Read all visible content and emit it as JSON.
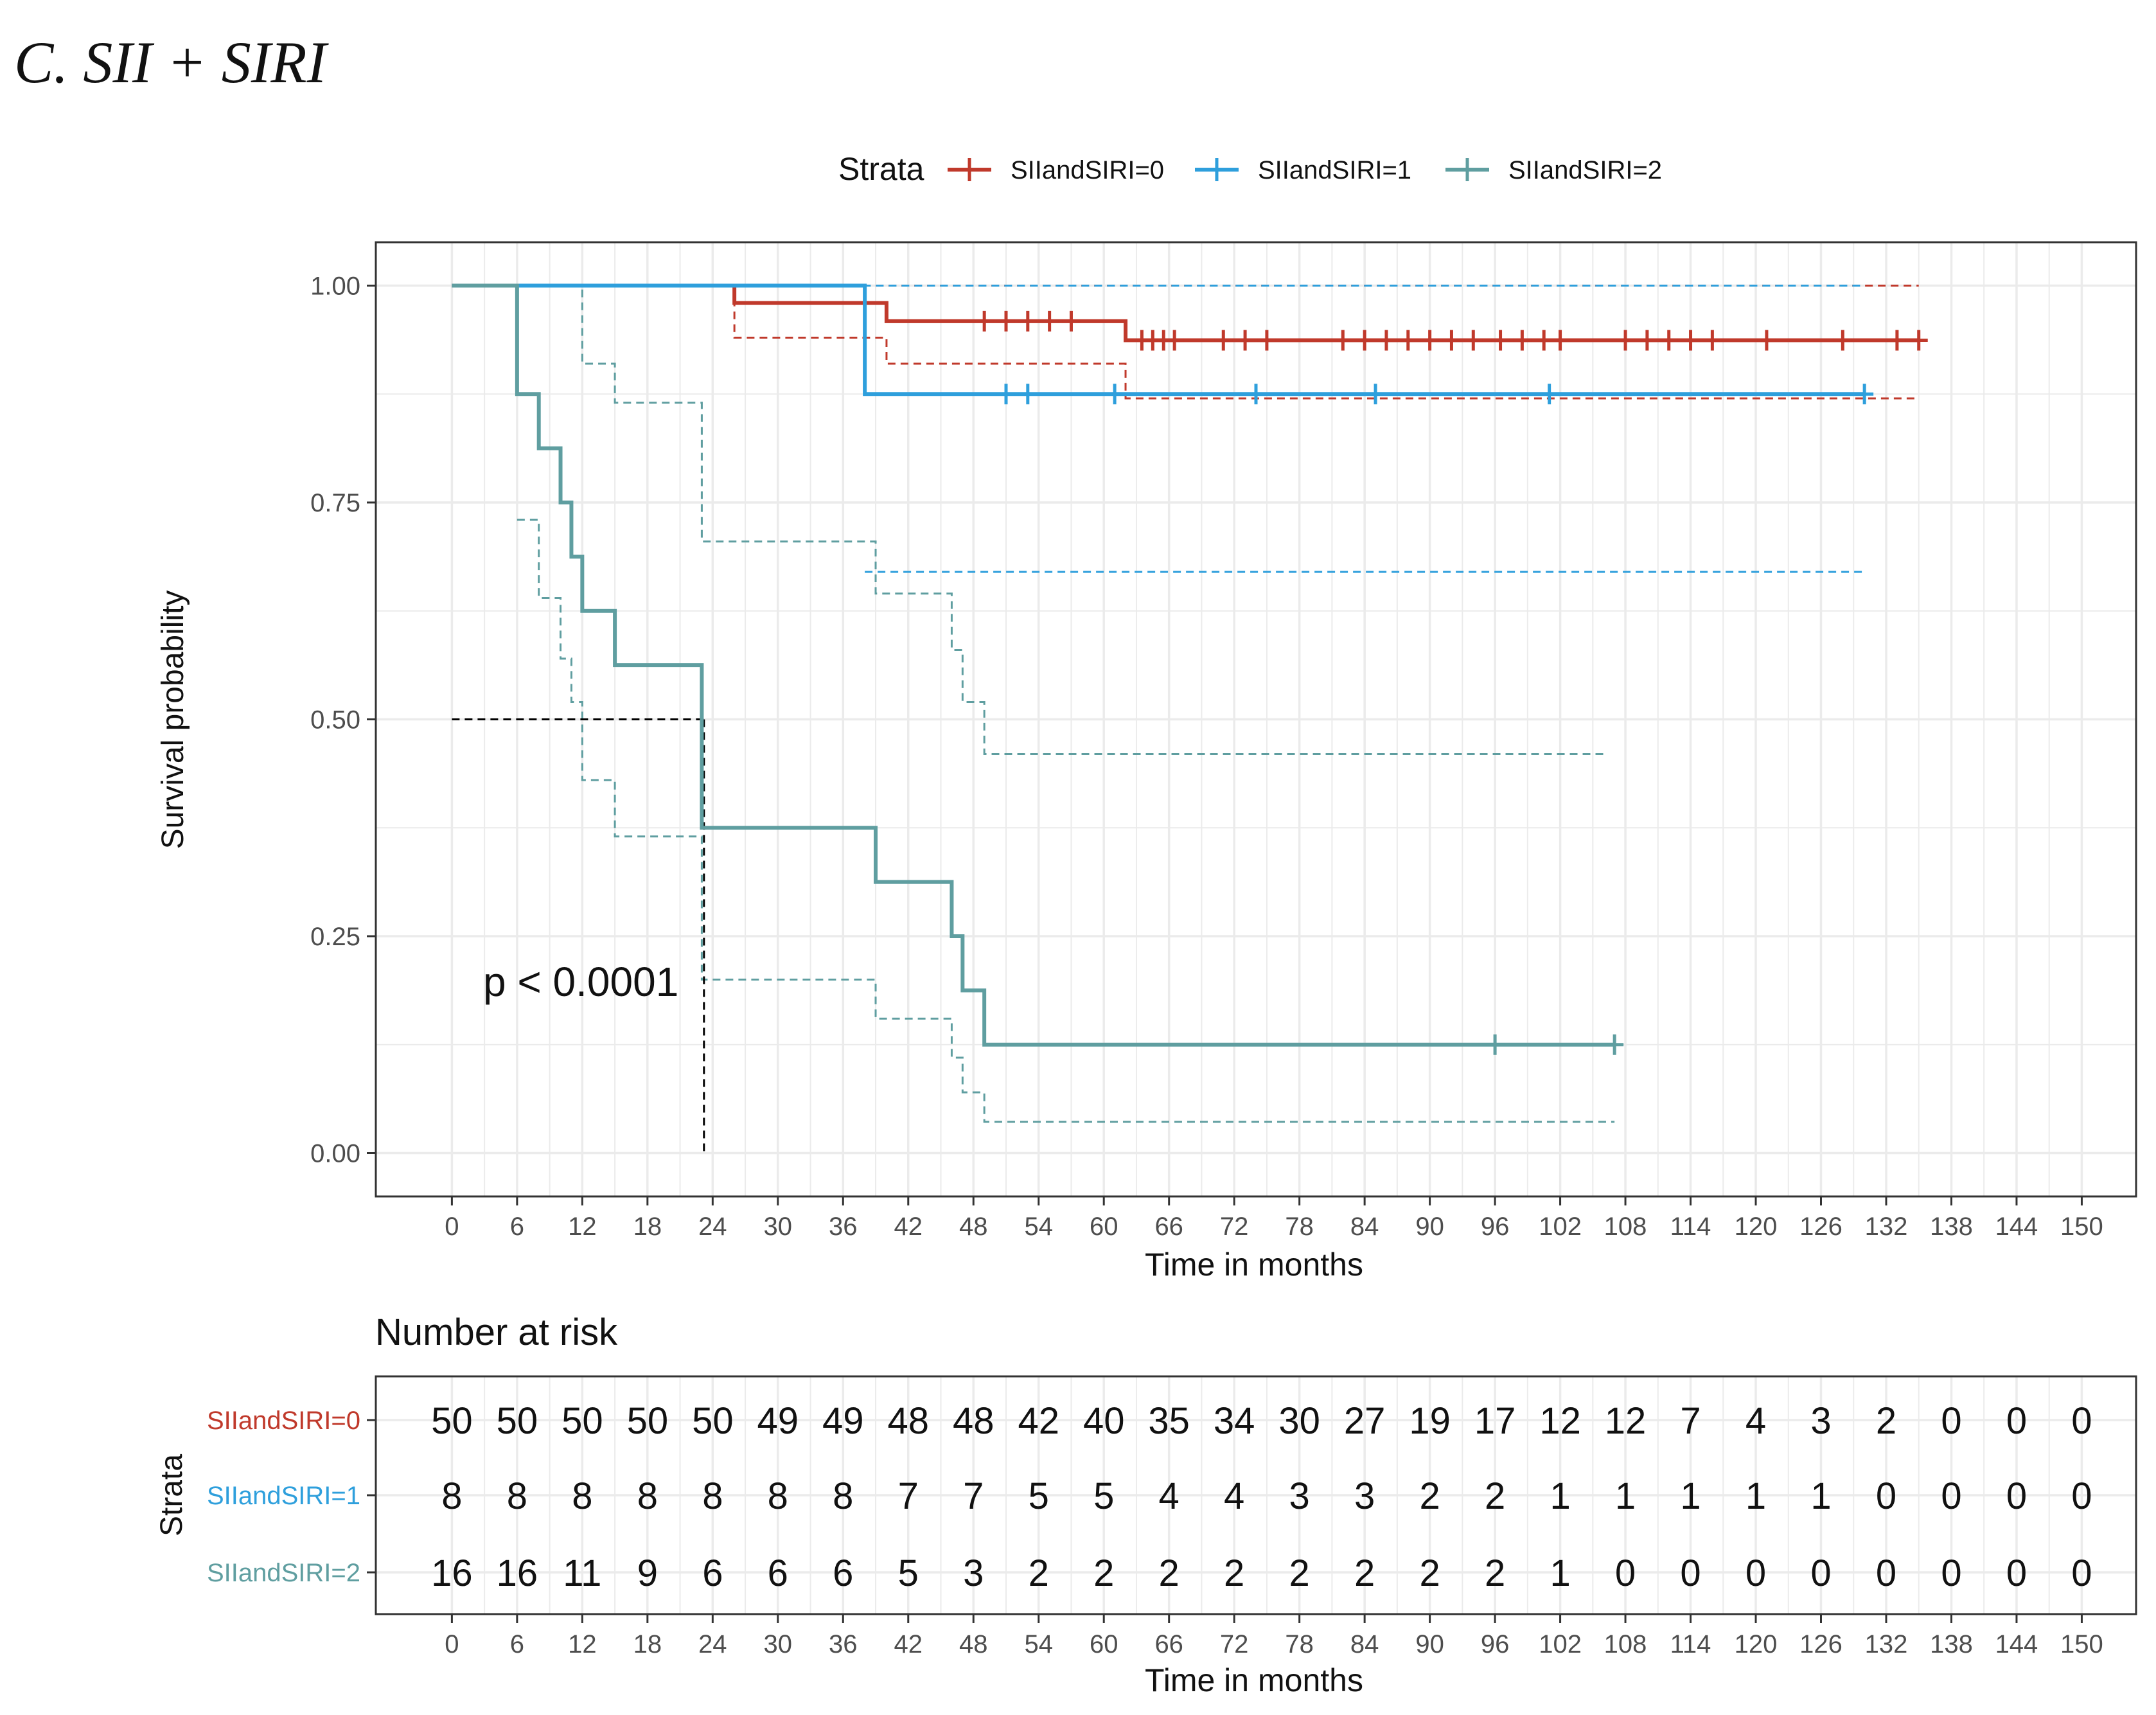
{
  "panel_title": "C.   SII + SIRI",
  "colors": {
    "s0": "#c0392b",
    "s1": "#2e9fdc",
    "s2": "#5f9ea0",
    "grid": "#ebebeb",
    "axis_text": "#4d4d4d",
    "median": "#000000"
  },
  "chart_data": {
    "type": "line",
    "subtype": "kaplan-meier",
    "legend": {
      "title": "Strata",
      "placement": "top",
      "items": [
        "SIIandSIRI=0",
        "SIIandSIRI=1",
        "SIIandSIRI=2"
      ]
    },
    "xlabel": "Time in months",
    "ylabel": "Survival probability",
    "xlim": [
      -7,
      155
    ],
    "ylim": [
      -0.05,
      1.05
    ],
    "x_ticks": [
      0,
      6,
      12,
      18,
      24,
      30,
      36,
      42,
      48,
      54,
      60,
      66,
      72,
      78,
      84,
      90,
      96,
      102,
      108,
      114,
      120,
      126,
      132,
      138,
      144,
      150
    ],
    "x_tick_labels": [
      "0",
      "6",
      "12",
      "18",
      "24",
      "30",
      "36",
      "42",
      "48",
      "54",
      "60",
      "66",
      "72",
      "78",
      "84",
      "90",
      "96",
      "102",
      "108",
      "114",
      "120",
      "126",
      "132",
      "138",
      "144",
      "150"
    ],
    "y_ticks": [
      0,
      0.25,
      0.5,
      0.75,
      1.0
    ],
    "y_tick_labels": [
      "0.00",
      "0.25",
      "0.50",
      "0.75",
      "1.00"
    ],
    "pvalue": "p < 0.0001",
    "median_line": {
      "y": 0.5,
      "x": 23.2
    },
    "series": [
      {
        "name": "SIIandSIRI=0",
        "color_key": "s0",
        "steps": [
          [
            0,
            1.0
          ],
          [
            26,
            0.98
          ],
          [
            40,
            0.959
          ],
          [
            62,
            0.937
          ],
          [
            135,
            0.937
          ]
        ],
        "censor_x": [
          49,
          51,
          53,
          55,
          57,
          63.5,
          64.5,
          65.5,
          66.5,
          71,
          73,
          75,
          82,
          84,
          86,
          88,
          90,
          92,
          94,
          96.5,
          98.5,
          100.5,
          102,
          108,
          110,
          112,
          114,
          116,
          121,
          128,
          133,
          135
        ],
        "lower": [
          [
            0,
            1.0
          ],
          [
            26,
            0.94
          ],
          [
            40,
            0.91
          ],
          [
            62,
            0.87
          ],
          [
            135,
            0.87
          ]
        ],
        "upper": [
          [
            26,
            1.0
          ],
          [
            130,
            1.0
          ],
          [
            130,
            1.0
          ],
          [
            135,
            1.0
          ]
        ]
      },
      {
        "name": "SIIandSIRI=1",
        "color_key": "s1",
        "steps": [
          [
            0,
            1.0
          ],
          [
            38,
            0.875
          ],
          [
            130,
            0.875
          ]
        ],
        "censor_x": [
          51,
          53,
          61,
          74,
          85,
          101,
          130
        ],
        "lower": [
          [
            38,
            0.67
          ],
          [
            130,
            0.67
          ]
        ],
        "upper": [
          [
            0,
            1.0
          ],
          [
            130,
            1.0
          ]
        ]
      },
      {
        "name": "SIIandSIRI=2",
        "color_key": "s2",
        "steps": [
          [
            0,
            1.0
          ],
          [
            6,
            0.875
          ],
          [
            8,
            0.8125
          ],
          [
            10,
            0.75
          ],
          [
            11,
            0.6875
          ],
          [
            12,
            0.625
          ],
          [
            15,
            0.5625
          ],
          [
            23,
            0.375
          ],
          [
            39,
            0.3125
          ],
          [
            46,
            0.25
          ],
          [
            47,
            0.1875
          ],
          [
            49,
            0.125
          ],
          [
            107,
            0.125
          ]
        ],
        "censor_x": [
          96,
          107
        ],
        "lower": [
          [
            6,
            0.73
          ],
          [
            8,
            0.64
          ],
          [
            10,
            0.57
          ],
          [
            11,
            0.52
          ],
          [
            12,
            0.43
          ],
          [
            15,
            0.365
          ],
          [
            23,
            0.2
          ],
          [
            39,
            0.155
          ],
          [
            46,
            0.11
          ],
          [
            47,
            0.07
          ],
          [
            49,
            0.036
          ],
          [
            107,
            0.036
          ]
        ],
        "upper": [
          [
            10,
            1.0
          ],
          [
            12,
            0.91
          ],
          [
            15,
            0.865
          ],
          [
            23,
            0.705
          ],
          [
            38,
            0.705
          ],
          [
            39,
            0.645
          ],
          [
            46,
            0.58
          ],
          [
            47,
            0.52
          ],
          [
            49,
            0.46
          ],
          [
            106,
            0.46
          ]
        ]
      }
    ]
  },
  "risk_table": {
    "title": "Number at risk",
    "ylabel": "Strata",
    "xlabel": "Time in months",
    "rows": [
      {
        "label": "SIIandSIRI=0",
        "color_key": "s0",
        "values": [
          "50",
          "50",
          "50",
          "50",
          "50",
          "49",
          "49",
          "48",
          "48",
          "42",
          "40",
          "35",
          "34",
          "30",
          "27",
          "19",
          "17",
          "12",
          "12",
          "7",
          "4",
          "3",
          "2",
          "0",
          "0",
          "0"
        ]
      },
      {
        "label": "SIIandSIRI=1",
        "color_key": "s1",
        "values": [
          "8",
          "8",
          "8",
          "8",
          "8",
          "8",
          "8",
          "7",
          "7",
          "5",
          "5",
          "4",
          "4",
          "3",
          "3",
          "2",
          "2",
          "1",
          "1",
          "1",
          "1",
          "1",
          "0",
          "0",
          "0",
          "0"
        ]
      },
      {
        "label": "SIIandSIRI=2",
        "color_key": "s2",
        "values": [
          "16",
          "16",
          "11",
          "9",
          "6",
          "6",
          "6",
          "5",
          "3",
          "2",
          "2",
          "2",
          "2",
          "2",
          "2",
          "2",
          "2",
          "1",
          "0",
          "0",
          "0",
          "0",
          "0",
          "0",
          "0",
          "0"
        ]
      }
    ]
  }
}
